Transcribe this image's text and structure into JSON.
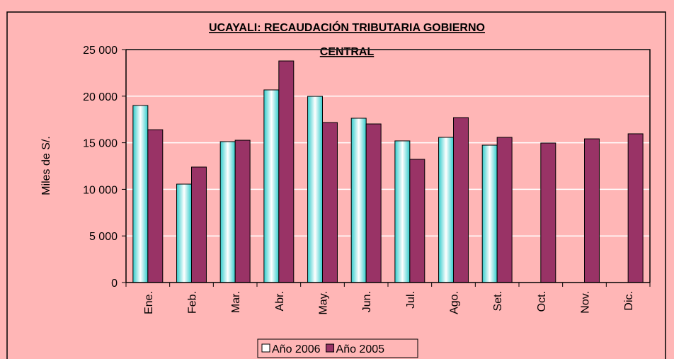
{
  "chart_data": {
    "type": "bar",
    "title": "UCAYALI: RECAUDACIÓN TRIBUTARIA GOBIERNO CENTRAL",
    "ylabel": "Miles de S/.",
    "categories": [
      "Ene.",
      "Feb.",
      "Mar.",
      "Abr.",
      "May.",
      "Jun.",
      "Jul.",
      "Ago.",
      "Set.",
      "Oct.",
      "Nov.",
      "Dic."
    ],
    "series": [
      {
        "name": "Año 2006",
        "color": "#33cccc",
        "values": [
          19000,
          10560,
          15120,
          20670,
          19980,
          17630,
          15200,
          15580,
          14740,
          null,
          null,
          null
        ]
      },
      {
        "name": "Año 2005",
        "color": "#993366",
        "values": [
          16400,
          12390,
          15270,
          23780,
          17170,
          17020,
          13220,
          17700,
          15580,
          14970,
          15420,
          15960
        ]
      }
    ],
    "ylim": [
      0,
      25000
    ],
    "yticks": [
      0,
      {
        "value": 5000,
        "label": "5 000"
      },
      {
        "value": 10000,
        "label": "10 000"
      },
      {
        "value": 15000,
        "label": "15 000"
      },
      {
        "value": 20000,
        "label": "20 000"
      },
      {
        "value": 25000,
        "label": "25 000"
      }
    ],
    "grid": true,
    "legend": "bottom"
  }
}
